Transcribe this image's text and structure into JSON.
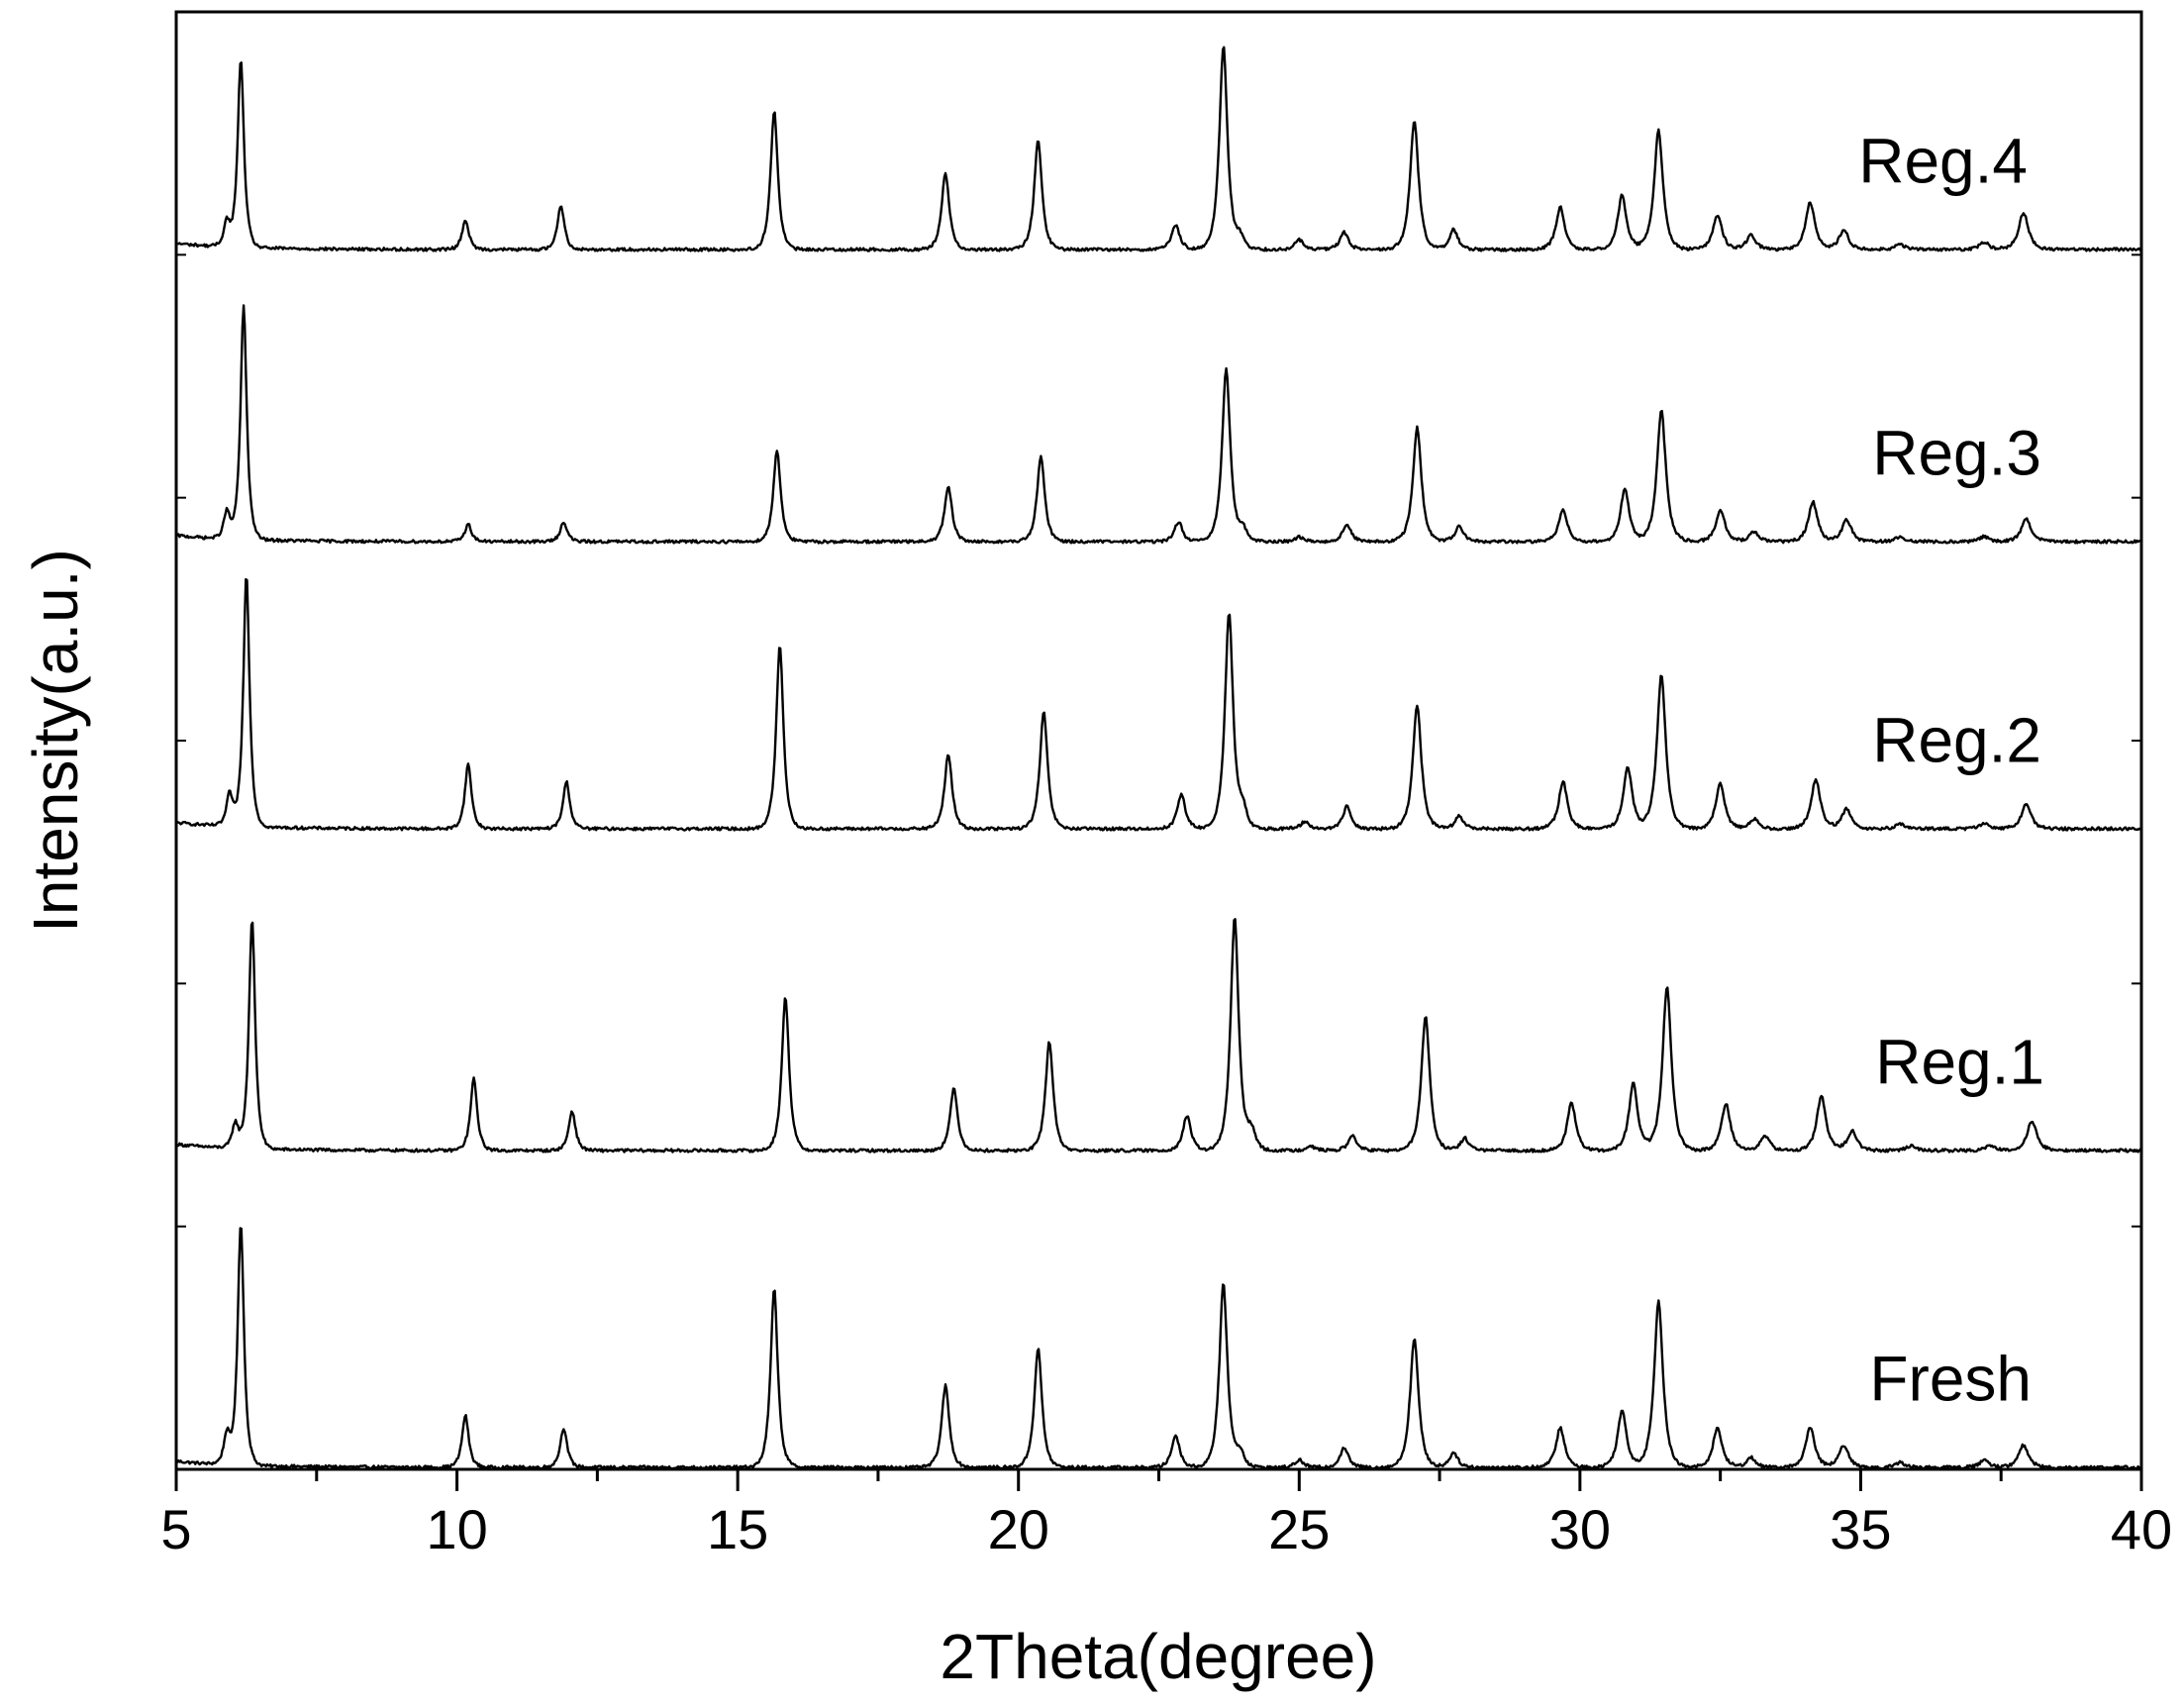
{
  "chart_data": {
    "type": "line",
    "title": "",
    "xlabel": "2Theta(degree)",
    "ylabel": "Intensity(a.u.)",
    "xlim": [
      5,
      40
    ],
    "xticks": [
      5,
      10,
      15,
      20,
      25,
      30,
      35,
      40
    ],
    "yticks_labeled": false,
    "grid": false,
    "legend": "inline labels at right of each trace",
    "line_color": "#000000",
    "series": [
      {
        "name": "Fresh",
        "baseline": 0.0,
        "peaks": [
          [
            6.15,
            0.98
          ],
          [
            5.9,
            0.12
          ],
          [
            10.15,
            0.21
          ],
          [
            11.9,
            0.16
          ],
          [
            15.65,
            0.72
          ],
          [
            18.7,
            0.33
          ],
          [
            20.35,
            0.48
          ],
          [
            22.8,
            0.13
          ],
          [
            23.65,
            0.74
          ],
          [
            23.95,
            0.06
          ],
          [
            25.0,
            0.03
          ],
          [
            25.8,
            0.08
          ],
          [
            27.05,
            0.52
          ],
          [
            27.75,
            0.06
          ],
          [
            29.65,
            0.16
          ],
          [
            30.75,
            0.23
          ],
          [
            31.4,
            0.67
          ],
          [
            32.45,
            0.16
          ],
          [
            33.05,
            0.04
          ],
          [
            34.1,
            0.16
          ],
          [
            34.7,
            0.09
          ],
          [
            35.7,
            0.02
          ],
          [
            37.2,
            0.03
          ],
          [
            37.9,
            0.09
          ]
        ]
      },
      {
        "name": "Reg.1",
        "baseline": 1.28,
        "peaks": [
          [
            6.35,
            0.93
          ],
          [
            6.05,
            0.1
          ],
          [
            10.3,
            0.29
          ],
          [
            12.05,
            0.16
          ],
          [
            15.85,
            0.62
          ],
          [
            18.85,
            0.25
          ],
          [
            20.55,
            0.44
          ],
          [
            23.0,
            0.14
          ],
          [
            23.85,
            0.94
          ],
          [
            24.15,
            0.08
          ],
          [
            25.2,
            0.02
          ],
          [
            25.95,
            0.06
          ],
          [
            27.25,
            0.54
          ],
          [
            27.95,
            0.05
          ],
          [
            29.85,
            0.19
          ],
          [
            30.95,
            0.27
          ],
          [
            31.55,
            0.66
          ],
          [
            32.6,
            0.19
          ],
          [
            33.3,
            0.06
          ],
          [
            34.3,
            0.22
          ],
          [
            34.85,
            0.08
          ],
          [
            35.9,
            0.02
          ],
          [
            37.3,
            0.02
          ],
          [
            38.05,
            0.12
          ]
        ]
      },
      {
        "name": "Reg.2",
        "baseline": 2.58,
        "peaks": [
          [
            6.25,
            1.02
          ],
          [
            5.95,
            0.13
          ],
          [
            10.2,
            0.26
          ],
          [
            11.95,
            0.19
          ],
          [
            15.75,
            0.74
          ],
          [
            18.75,
            0.3
          ],
          [
            20.45,
            0.47
          ],
          [
            22.9,
            0.14
          ],
          [
            23.75,
            0.87
          ],
          [
            24.0,
            0.07
          ],
          [
            25.1,
            0.03
          ],
          [
            25.85,
            0.09
          ],
          [
            27.1,
            0.5
          ],
          [
            27.85,
            0.05
          ],
          [
            29.7,
            0.19
          ],
          [
            30.85,
            0.25
          ],
          [
            31.45,
            0.62
          ],
          [
            32.5,
            0.18
          ],
          [
            33.1,
            0.04
          ],
          [
            34.2,
            0.2
          ],
          [
            34.75,
            0.08
          ],
          [
            35.7,
            0.02
          ],
          [
            37.2,
            0.02
          ],
          [
            37.95,
            0.1
          ]
        ]
      },
      {
        "name": "Reg.3",
        "baseline": 3.74,
        "peaks": [
          [
            6.2,
            0.94
          ],
          [
            5.9,
            0.11
          ],
          [
            10.2,
            0.07
          ],
          [
            11.9,
            0.08
          ],
          [
            15.7,
            0.37
          ],
          [
            18.75,
            0.22
          ],
          [
            20.4,
            0.34
          ],
          [
            22.85,
            0.08
          ],
          [
            23.7,
            0.7
          ],
          [
            24.0,
            0.05
          ],
          [
            25.0,
            0.02
          ],
          [
            25.85,
            0.07
          ],
          [
            27.1,
            0.46
          ],
          [
            27.85,
            0.06
          ],
          [
            29.7,
            0.13
          ],
          [
            30.8,
            0.21
          ],
          [
            31.45,
            0.53
          ],
          [
            32.5,
            0.13
          ],
          [
            33.1,
            0.04
          ],
          [
            34.15,
            0.16
          ],
          [
            34.75,
            0.09
          ],
          [
            35.7,
            0.02
          ],
          [
            37.2,
            0.02
          ],
          [
            37.95,
            0.09
          ]
        ]
      },
      {
        "name": "Reg.4",
        "baseline": 4.92,
        "peaks": [
          [
            6.15,
            0.76
          ],
          [
            5.9,
            0.1
          ],
          [
            10.15,
            0.12
          ],
          [
            11.85,
            0.18
          ],
          [
            15.65,
            0.56
          ],
          [
            18.7,
            0.31
          ],
          [
            20.35,
            0.44
          ],
          [
            22.8,
            0.1
          ],
          [
            23.65,
            0.82
          ],
          [
            23.95,
            0.05
          ],
          [
            25.0,
            0.04
          ],
          [
            25.8,
            0.07
          ],
          [
            27.05,
            0.52
          ],
          [
            27.75,
            0.08
          ],
          [
            29.65,
            0.17
          ],
          [
            30.75,
            0.22
          ],
          [
            31.4,
            0.48
          ],
          [
            32.45,
            0.14
          ],
          [
            33.05,
            0.06
          ],
          [
            34.1,
            0.19
          ],
          [
            34.7,
            0.08
          ],
          [
            35.7,
            0.02
          ],
          [
            37.2,
            0.03
          ],
          [
            37.9,
            0.15
          ]
        ]
      }
    ]
  }
}
